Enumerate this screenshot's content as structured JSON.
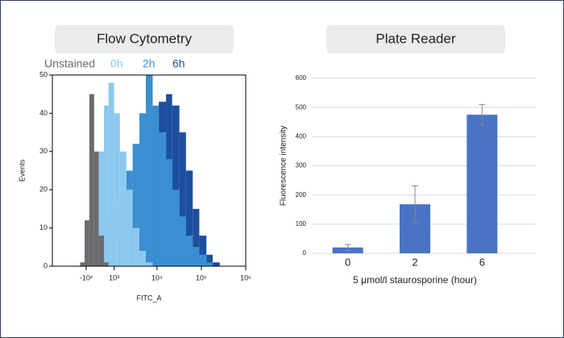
{
  "chart_data": [
    {
      "type": "histogram",
      "title": "Flow Cytometry",
      "x_label": "FITC_A",
      "y_label": "Events",
      "xscale": "biexponential",
      "xlim": [
        -2000,
        1000000
      ],
      "xticks": [
        {
          "value": -100,
          "label": "-10²"
        },
        {
          "value": 1000,
          "label": "10³"
        },
        {
          "value": 10000,
          "label": "10⁴"
        },
        {
          "value": 100000,
          "label": "10⁵"
        },
        {
          "value": 1000000,
          "label": "10⁶"
        }
      ],
      "ylim": [
        0,
        50
      ],
      "yticks": [
        0,
        10,
        20,
        30,
        40,
        50
      ],
      "bins": [
        -500,
        -300,
        -150,
        0,
        150,
        300,
        500,
        700,
        1000,
        1400,
        2000,
        2800,
        4000,
        5600,
        8000,
        11000,
        16000,
        22000,
        32000,
        45000,
        64000,
        90000,
        130000,
        180000,
        260000,
        400000
      ],
      "series": [
        {
          "name": "Unstained",
          "color": "#6b6b6e",
          "values": [
            0,
            1,
            12,
            45,
            30,
            8,
            1,
            0,
            0,
            0,
            0,
            0,
            0,
            0,
            0,
            0,
            0,
            0,
            0,
            0,
            0,
            0,
            0,
            0,
            0
          ]
        },
        {
          "name": "0h",
          "color": "#8dc8ee",
          "values": [
            0,
            0,
            0,
            2,
            10,
            30,
            42,
            48,
            40,
            30,
            20,
            10,
            4,
            1,
            0,
            0,
            0,
            0,
            0,
            0,
            0,
            0,
            0,
            0,
            0
          ]
        },
        {
          "name": "2h",
          "color": "#3a8fd0",
          "values": [
            0,
            0,
            0,
            0,
            1,
            5,
            10,
            13,
            15,
            18,
            25,
            32,
            40,
            50,
            42,
            35,
            28,
            20,
            13,
            8,
            5,
            3,
            1,
            0,
            0
          ]
        },
        {
          "name": "6h",
          "color": "#1d4f9c",
          "values": [
            0,
            0,
            0,
            0,
            0,
            0,
            0,
            2,
            5,
            8,
            10,
            16,
            25,
            32,
            38,
            43,
            45,
            42,
            35,
            25,
            15,
            8,
            3,
            1,
            0
          ]
        }
      ]
    },
    {
      "type": "bar",
      "title": "Plate Reader",
      "x_label": "5 μmol/l staurosporine (hour)",
      "y_label": "Fluorescence intensity",
      "categories": [
        "0",
        "2",
        "6"
      ],
      "values": [
        20,
        168,
        475
      ],
      "errors": [
        10,
        63,
        35
      ],
      "color": "#4a73c5",
      "ylim": [
        0,
        600
      ],
      "yticks": [
        0,
        100,
        200,
        300,
        400,
        500,
        600
      ],
      "grid": true
    }
  ]
}
